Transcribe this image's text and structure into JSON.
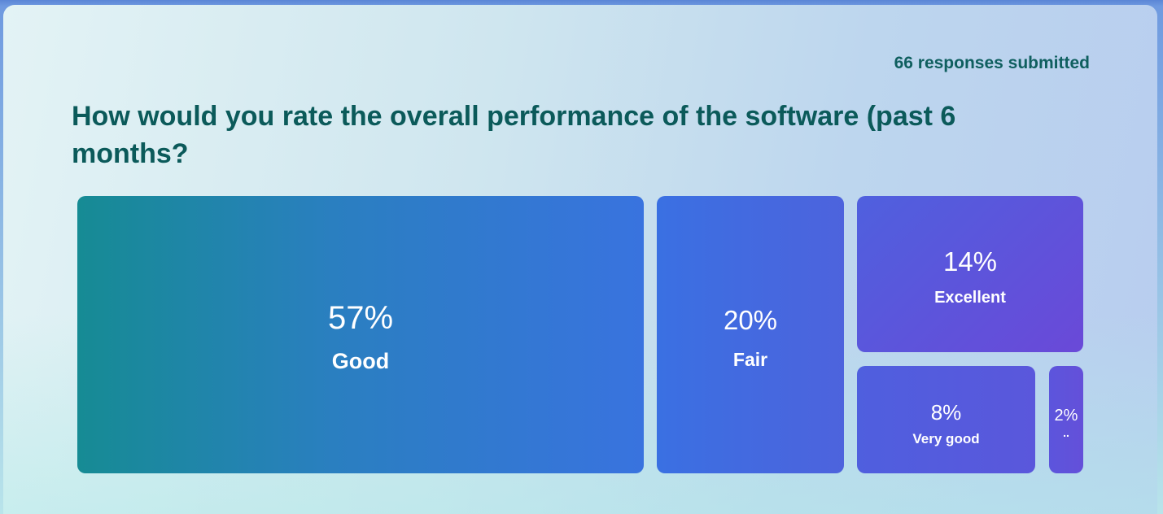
{
  "summary": {
    "responses": "66 responses submitted"
  },
  "question": {
    "text": "How would you rate the overall performance of the software  (past 6 months?"
  },
  "chart_data": {
    "type": "treemap",
    "items": [
      {
        "label": "Good",
        "percent": 57,
        "display": "57%"
      },
      {
        "label": "Fair",
        "percent": 20,
        "display": "20%"
      },
      {
        "label": "Excellent",
        "percent": 14,
        "display": "14%"
      },
      {
        "label": "Very good",
        "percent": 8,
        "display": "8%"
      },
      {
        "label": "..",
        "percent": 2,
        "display": "2%"
      }
    ]
  },
  "colors": {
    "title": "#0b5a5a",
    "tile_start": "#168b94",
    "tile_end": "#6a49d8"
  }
}
